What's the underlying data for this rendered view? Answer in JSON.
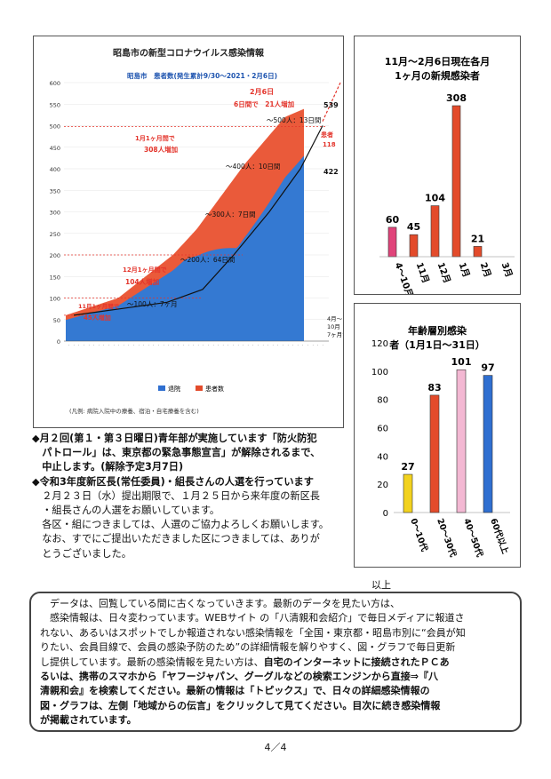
{
  "main_chart": {
    "title": "昭島市の新型コロナウイルス感染情報",
    "subtitle": "昭島市　患者数(発生累計9/30〜2021・2月6日)",
    "yaxis_ticks": [
      "0",
      "50",
      "100",
      "150",
      "200",
      "250",
      "300",
      "350",
      "400",
      "450",
      "500",
      "550",
      "600"
    ],
    "legend": {
      "blue": "退院",
      "red": "患者数"
    },
    "footnote": "(凡例: 病院入院中の療養、宿泊・自宅療養を含む)",
    "annotations": {
      "feb6_title": "2月6日",
      "feb6_detail": "6日間で　21人増加",
      "jan_increase": "1月1ヶ月間で",
      "jan_increase_num": "308人増加",
      "dec_increase": "12月1ヶ月間で",
      "dec_increase_num": "104人増加",
      "nov_increase": "11月1ヶ月間で",
      "nov_increase_num": "45人増加",
      "m500": "〜500人：13日間",
      "m400": "〜400人：10日間",
      "m300": "〜300人：7日間",
      "m200": "〜200人：64日間",
      "m100": "〜100人：7ヶ月",
      "val_total": "539",
      "val_patients": "患者",
      "val_patients_num": "118",
      "val_recovered": "422",
      "apr_note": "4月〜10月7ヶ月で60人"
    }
  },
  "chart_data": [
    {
      "type": "bar",
      "title": "11月〜2月6日現在各月1ヶ月の新規感染者",
      "categories": [
        "4〜10月",
        "11月",
        "12月",
        "1月",
        "2月",
        "3月"
      ],
      "values": [
        60,
        45,
        104,
        308,
        21,
        null
      ],
      "colors": [
        "#e0447a",
        "#e34b2b",
        "#e34b2b",
        "#e34b2b",
        "#e34b2b",
        "#e34b2b"
      ]
    },
    {
      "type": "bar",
      "title": "年齢層別感染者（1月1日〜31日）",
      "categories": [
        "0〜10代",
        "20〜30代",
        "40〜50代",
        "60代以上"
      ],
      "values": [
        27,
        83,
        101,
        97
      ],
      "ylim": [
        0,
        120
      ],
      "yticks": [
        "0",
        "20",
        "40",
        "60",
        "80",
        "100",
        "120"
      ],
      "colors": [
        "#f2d21e",
        "#e34b2b",
        "#f3b8d3",
        "#2f6fd0"
      ]
    }
  ],
  "notice": {
    "item1_line1": "◆月２回(第１・第３日曜日)青年部が実施しています「防火防犯",
    "item1_line2": "　パトロール」は、東京都の緊急事態宣言」が解除されるまで、",
    "item1_line3": "　中止します。(解除予定3月7日)",
    "item2_line1": "◆令和3年度新区長(常任委員)・組長さんの人選を行っています",
    "item2_line2": "　２月２３日（水）提出期限で、１月２５日から来年度の新区長",
    "item2_line3": "　・組長さんの人選をお願いしています。",
    "item2_line4": "　各区・組につきましては、人選のご協力よろしくお願いします。",
    "item2_line5": "　なお、すでにご提出いただきました区につきましては、ありが",
    "item2_line6": "　とうございました。",
    "signoff": "以上"
  },
  "footer": {
    "line1": "　データは、回覧している間に古くなっていきます。最新のデータを見たい方は、",
    "line2": "　感染情報は、日々変わっています。WEBサイト の「八清親和会紹介」で毎日メディアに報道さ",
    "line3": "れない、あるいはスポットでしか報道されない感染情報を「全国・東京都・昭島市別に“会員が知",
    "line4": "りたい、会員目線で、会員の感染予防のため”の詳細情報を解りやすく、図・グラフで毎日更新",
    "line5a": "し提供しています。最新の感染情報を見たい方は、",
    "line5b": "自宅のインターネットに接続されたＰＣあ",
    "line6": "るいは、携帯のスマホから「ヤフージャパン、グーグルなどの検索エンジンから直接⇒『八",
    "line7": "清親和会』を検索してください。最新の情報は「トピックス」で、日々の詳細感染情報の",
    "line8": "図・グラフは、左側「地域からの伝言」をクリックして見てください。目次に続き感染情報",
    "line9": "が掲載されています。"
  },
  "page_number": "4／4"
}
